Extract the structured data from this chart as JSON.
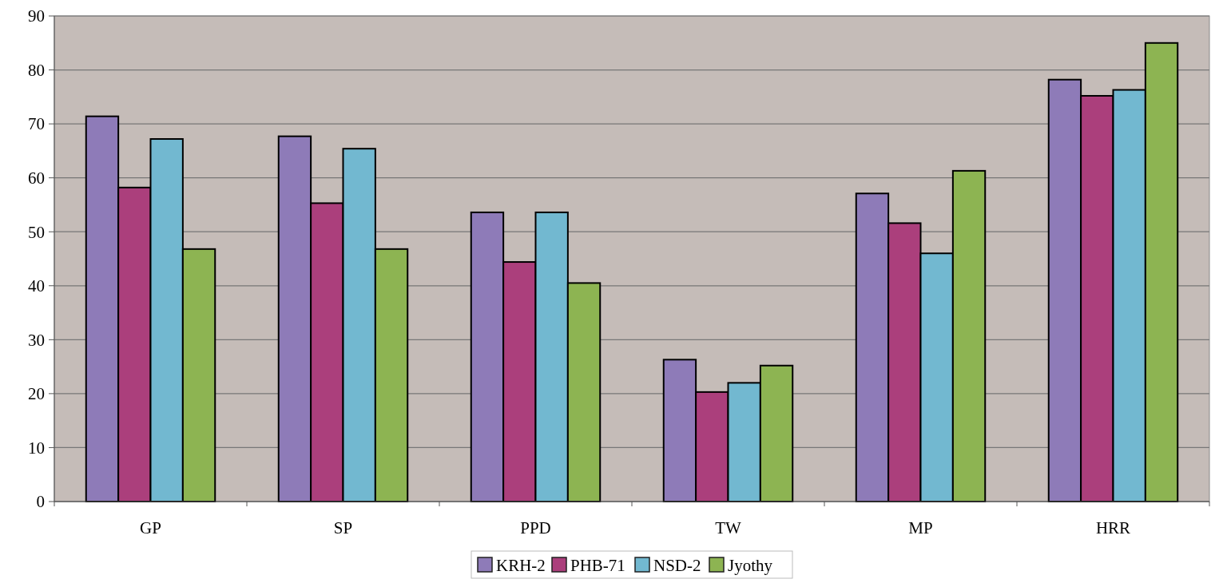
{
  "chart_data": {
    "type": "bar",
    "categories": [
      "GP",
      "SP",
      "PPD",
      "TW",
      "MP",
      "HRR"
    ],
    "series": [
      {
        "name": "KRH-2",
        "color": "#8e7bb8",
        "values": [
          71.4,
          67.7,
          53.6,
          26.3,
          57.1,
          78.2
        ]
      },
      {
        "name": "PHB-71",
        "color": "#ab3f7c",
        "values": [
          58.2,
          55.3,
          44.4,
          20.3,
          51.6,
          75.2
        ]
      },
      {
        "name": "NSD-2",
        "color": "#72b8d0",
        "values": [
          67.2,
          65.4,
          53.6,
          22.0,
          46.0,
          76.3
        ]
      },
      {
        "name": "Jyothy",
        "color": "#8db452",
        "values": [
          46.8,
          46.8,
          40.5,
          25.2,
          61.3,
          85.0
        ]
      }
    ],
    "ylim": [
      0,
      90
    ],
    "yticks": [
      0,
      10,
      20,
      30,
      40,
      50,
      60,
      70,
      80,
      90
    ],
    "grid": "y",
    "legend": "bottom"
  }
}
